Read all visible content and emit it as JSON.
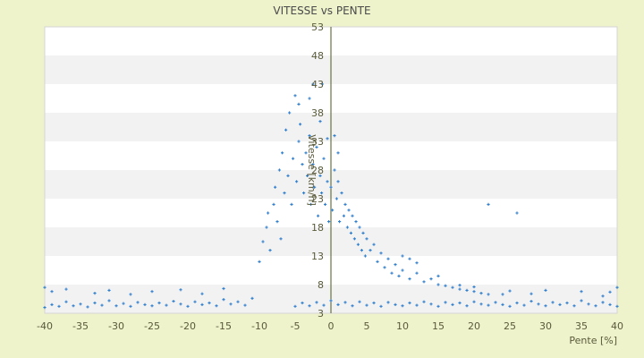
{
  "chart_data": {
    "type": "scatter",
    "title": "VITESSE vs PENTE",
    "xlabel": "Pente [%]",
    "ylabel": "Vitesse [km/h]",
    "xlim": [
      -40,
      40
    ],
    "ylim": [
      3,
      53
    ],
    "x_ticks": [
      "-40",
      "-35",
      "-30",
      "-25",
      "-20",
      "-15",
      "-10",
      "-5",
      "0",
      "5",
      "10",
      "15",
      "20",
      "25",
      "30",
      "35",
      "40"
    ],
    "y_ticks": [
      "3",
      "8",
      "13",
      "18",
      "23",
      "28",
      "33",
      "38",
      "43",
      "48",
      "53"
    ],
    "colors": {
      "background": "#eef3cc",
      "plot_band_a": "#ffffff",
      "plot_band_b": "#f2f2f2",
      "point": "#2f7fcf",
      "zero_line": "#4a5a1a"
    },
    "series": [
      {
        "points": [
          [
            -40,
            4.0
          ],
          [
            -39,
            4.5
          ],
          [
            -38,
            4.2
          ],
          [
            -37,
            5.0
          ],
          [
            -36,
            4.3
          ],
          [
            -35,
            4.6
          ],
          [
            -34,
            4.1
          ],
          [
            -33,
            4.8
          ],
          [
            -32,
            4.4
          ],
          [
            -31,
            5.2
          ],
          [
            -30,
            4.3
          ],
          [
            -29,
            4.7
          ],
          [
            -28,
            4.2
          ],
          [
            -27,
            4.9
          ],
          [
            -26,
            4.5
          ],
          [
            -25,
            4.3
          ],
          [
            -24,
            4.8
          ],
          [
            -23,
            4.4
          ],
          [
            -22,
            5.1
          ],
          [
            -21,
            4.6
          ],
          [
            -20,
            4.2
          ],
          [
            -19,
            5.0
          ],
          [
            -18,
            4.5
          ],
          [
            -17,
            4.8
          ],
          [
            -16,
            4.3
          ],
          [
            -15,
            5.4
          ],
          [
            -14,
            4.6
          ],
          [
            -13,
            5.0
          ],
          [
            -12,
            4.4
          ],
          [
            -11,
            5.6
          ],
          [
            -40,
            7.5
          ],
          [
            -39,
            6.8
          ],
          [
            -37,
            7.2
          ],
          [
            -33,
            6.5
          ],
          [
            -31,
            7.0
          ],
          [
            -28,
            6.3
          ],
          [
            -25,
            6.8
          ],
          [
            -21,
            7.1
          ],
          [
            -18,
            6.4
          ],
          [
            -15,
            7.3
          ],
          [
            -10,
            12.0
          ],
          [
            -9.5,
            15.5
          ],
          [
            -9,
            18.0
          ],
          [
            -8.8,
            20.5
          ],
          [
            -8.5,
            14.0
          ],
          [
            -8,
            22.0
          ],
          [
            -7.8,
            25.0
          ],
          [
            -7.5,
            19.0
          ],
          [
            -7.2,
            28.0
          ],
          [
            -7,
            16.0
          ],
          [
            -6.8,
            31.0
          ],
          [
            -6.5,
            24.0
          ],
          [
            -6.3,
            35.0
          ],
          [
            -6,
            27.0
          ],
          [
            -5.8,
            38.0
          ],
          [
            -5.5,
            22.0
          ],
          [
            -5.3,
            30.0
          ],
          [
            -5,
            41.0
          ],
          [
            -4.8,
            26.0
          ],
          [
            -4.5,
            33.0
          ],
          [
            -4.3,
            36.0
          ],
          [
            -4,
            29.0
          ],
          [
            -3.8,
            24.0
          ],
          [
            -3.5,
            31.0
          ],
          [
            -3.3,
            27.0
          ],
          [
            -3,
            34.0
          ],
          [
            -2.8,
            22.0
          ],
          [
            -2.5,
            29.0
          ],
          [
            -2.3,
            25.0
          ],
          [
            -2,
            32.0
          ],
          [
            -1.8,
            20.0
          ],
          [
            -1.5,
            27.0
          ],
          [
            -1.3,
            24.0
          ],
          [
            -1,
            30.0
          ],
          [
            -0.8,
            22.0
          ],
          [
            -0.5,
            26.0
          ],
          [
            -0.3,
            19.0
          ],
          [
            0,
            25.0
          ],
          [
            0.2,
            21.0
          ],
          [
            0.5,
            28.0
          ],
          [
            0.8,
            23.0
          ],
          [
            1,
            26.0
          ],
          [
            1.2,
            19.0
          ],
          [
            1.5,
            24.0
          ],
          [
            1.8,
            20.0
          ],
          [
            2,
            22.0
          ],
          [
            2.3,
            18.0
          ],
          [
            2.5,
            21.0
          ],
          [
            2.8,
            17.0
          ],
          [
            3,
            20.0
          ],
          [
            3.3,
            16.0
          ],
          [
            3.5,
            19.0
          ],
          [
            3.8,
            15.0
          ],
          [
            4,
            18.0
          ],
          [
            4.3,
            14.0
          ],
          [
            4.5,
            17.0
          ],
          [
            4.8,
            13.0
          ],
          [
            5,
            16.0
          ],
          [
            5.5,
            14.0
          ],
          [
            6,
            15.0
          ],
          [
            6.5,
            12.0
          ],
          [
            7,
            13.5
          ],
          [
            7.5,
            11.0
          ],
          [
            8,
            12.5
          ],
          [
            8.5,
            10.0
          ],
          [
            9,
            11.5
          ],
          [
            9.5,
            9.5
          ],
          [
            10,
            10.5
          ],
          [
            11,
            9.0
          ],
          [
            12,
            10.0
          ],
          [
            13,
            8.5
          ],
          [
            14,
            9.0
          ],
          [
            15,
            8.0
          ],
          [
            16,
            7.8
          ],
          [
            17,
            7.5
          ],
          [
            18,
            7.2
          ],
          [
            19,
            7.0
          ],
          [
            20,
            6.8
          ],
          [
            21,
            6.5
          ],
          [
            22,
            6.3
          ],
          [
            22,
            22.0
          ],
          [
            26,
            20.5
          ],
          [
            0.5,
            34.0
          ],
          [
            -2.5,
            43.0
          ],
          [
            -1.2,
            43.0
          ],
          [
            -4.5,
            39.5
          ],
          [
            -3,
            40.5
          ],
          [
            1,
            31.0
          ],
          [
            -1.5,
            36.5
          ],
          [
            -0.5,
            33.5
          ],
          [
            -5,
            4.2
          ],
          [
            -4,
            4.8
          ],
          [
            -3,
            4.3
          ],
          [
            -2,
            4.9
          ],
          [
            -1,
            4.4
          ],
          [
            0,
            5.2
          ],
          [
            1,
            4.5
          ],
          [
            2,
            4.9
          ],
          [
            3,
            4.3
          ],
          [
            4,
            5.0
          ],
          [
            5,
            4.4
          ],
          [
            6,
            4.8
          ],
          [
            7,
            4.2
          ],
          [
            8,
            4.9
          ],
          [
            9,
            4.5
          ],
          [
            10,
            4.3
          ],
          [
            11,
            4.8
          ],
          [
            12,
            4.4
          ],
          [
            13,
            5.0
          ],
          [
            14,
            4.6
          ],
          [
            15,
            4.2
          ],
          [
            16,
            4.9
          ],
          [
            17,
            4.5
          ],
          [
            18,
            4.8
          ],
          [
            19,
            4.3
          ],
          [
            20,
            5.0
          ],
          [
            21,
            4.6
          ],
          [
            22,
            4.4
          ],
          [
            23,
            4.9
          ],
          [
            24,
            4.5
          ],
          [
            25,
            4.2
          ],
          [
            26,
            4.8
          ],
          [
            27,
            4.4
          ],
          [
            28,
            5.1
          ],
          [
            29,
            4.6
          ],
          [
            30,
            4.3
          ],
          [
            31,
            4.9
          ],
          [
            32,
            4.5
          ],
          [
            33,
            4.8
          ],
          [
            34,
            4.3
          ],
          [
            35,
            5.2
          ],
          [
            36,
            4.6
          ],
          [
            37,
            4.3
          ],
          [
            38,
            4.9
          ],
          [
            39,
            4.5
          ],
          [
            40,
            4.2
          ],
          [
            38,
            6.0
          ],
          [
            35,
            6.8
          ],
          [
            30,
            7.0
          ],
          [
            28,
            6.4
          ],
          [
            25,
            6.9
          ],
          [
            20,
            7.6
          ],
          [
            18,
            7.9
          ],
          [
            40,
            7.5
          ],
          [
            39,
            6.7
          ],
          [
            24,
            6.3
          ],
          [
            15,
            9.5
          ],
          [
            12,
            11.8
          ],
          [
            11,
            12.5
          ],
          [
            10,
            13.0
          ]
        ]
      }
    ]
  }
}
